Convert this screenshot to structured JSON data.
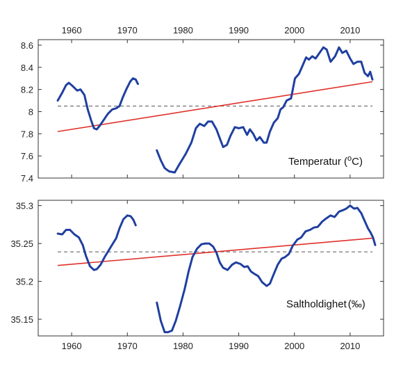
{
  "colors": {
    "series": "#1f3fa0",
    "trend": "#e0302a",
    "mean": "#555555",
    "axis": "#333333"
  },
  "chart_data": [
    {
      "type": "line",
      "label_text": "Temperatur (",
      "label_sup": "o",
      "label_unit": "C)",
      "xlim": [
        1954,
        2016
      ],
      "ylim": [
        7.4,
        8.65
      ],
      "xticks": [
        "1960",
        "1970",
        "1980",
        "1990",
        "2000",
        "2010"
      ],
      "yticks": [
        "7.4",
        "7.6",
        "7.8",
        "8",
        "8.2",
        "8.4",
        "8.6"
      ],
      "xaxis_position": "top",
      "grid": false,
      "mean": 8.05,
      "trend": [
        [
          1957.5,
          7.82
        ],
        [
          2014.0,
          8.27
        ]
      ],
      "series": [
        {
          "values": [
            [
              1957.5,
              8.1
            ],
            [
              1958.3,
              8.17
            ],
            [
              1959.0,
              8.24
            ],
            [
              1959.5,
              8.26
            ],
            [
              1960.2,
              8.23
            ],
            [
              1961.0,
              8.19
            ],
            [
              1961.6,
              8.2
            ],
            [
              1962.3,
              8.15
            ],
            [
              1962.9,
              8.02
            ],
            [
              1963.5,
              7.92
            ],
            [
              1964.0,
              7.85
            ],
            [
              1964.5,
              7.84
            ],
            [
              1965.0,
              7.87
            ],
            [
              1965.7,
              7.92
            ],
            [
              1966.5,
              7.98
            ],
            [
              1967.3,
              8.02
            ],
            [
              1968.0,
              8.03
            ],
            [
              1968.6,
              8.05
            ],
            [
              1969.2,
              8.13
            ],
            [
              1969.8,
              8.2
            ],
            [
              1970.5,
              8.27
            ],
            [
              1971.0,
              8.3
            ],
            [
              1971.5,
              8.29
            ],
            [
              1971.9,
              8.25
            ]
          ]
        },
        {
          "values": [
            [
              1975.3,
              7.65
            ],
            [
              1976.0,
              7.56
            ],
            [
              1976.7,
              7.49
            ],
            [
              1977.5,
              7.46
            ],
            [
              1978.5,
              7.45
            ],
            [
              1979.3,
              7.52
            ],
            [
              1980.5,
              7.62
            ],
            [
              1981.5,
              7.72
            ],
            [
              1982.3,
              7.85
            ],
            [
              1983.0,
              7.89
            ],
            [
              1983.8,
              7.87
            ],
            [
              1984.5,
              7.91
            ],
            [
              1985.2,
              7.91
            ],
            [
              1986.0,
              7.84
            ],
            [
              1986.6,
              7.76
            ],
            [
              1987.2,
              7.68
            ],
            [
              1987.9,
              7.7
            ],
            [
              1988.5,
              7.78
            ],
            [
              1989.3,
              7.86
            ],
            [
              1990.0,
              7.85
            ],
            [
              1990.8,
              7.86
            ],
            [
              1991.5,
              7.79
            ],
            [
              1992.0,
              7.84
            ],
            [
              1992.6,
              7.8
            ],
            [
              1993.2,
              7.74
            ],
            [
              1993.8,
              7.77
            ],
            [
              1994.5,
              7.72
            ],
            [
              1995.0,
              7.72
            ],
            [
              1995.6,
              7.82
            ],
            [
              1996.3,
              7.9
            ],
            [
              1997.0,
              7.94
            ],
            [
              1997.5,
              8.02
            ],
            [
              1998.0,
              8.04
            ],
            [
              1998.6,
              8.1
            ],
            [
              1999.4,
              8.12
            ],
            [
              2000.1,
              8.3
            ],
            [
              2000.8,
              8.34
            ],
            [
              2001.5,
              8.42
            ],
            [
              2002.1,
              8.49
            ],
            [
              2002.6,
              8.47
            ],
            [
              2003.2,
              8.5
            ],
            [
              2003.8,
              8.48
            ],
            [
              2004.5,
              8.53
            ],
            [
              2005.2,
              8.58
            ],
            [
              2005.8,
              8.56
            ],
            [
              2006.5,
              8.45
            ],
            [
              2007.3,
              8.5
            ],
            [
              2008.0,
              8.58
            ],
            [
              2008.6,
              8.53
            ],
            [
              2009.3,
              8.55
            ],
            [
              2010.0,
              8.48
            ],
            [
              2010.6,
              8.43
            ],
            [
              2011.3,
              8.45
            ],
            [
              2012.0,
              8.45
            ],
            [
              2012.6,
              8.35
            ],
            [
              2013.2,
              8.32
            ],
            [
              2013.6,
              8.36
            ],
            [
              2014.0,
              8.29
            ]
          ]
        }
      ]
    },
    {
      "type": "line",
      "label_text": "Saltholdighet",
      "label_sup": "",
      "label_unit": "(‰)",
      "xlim": [
        1954,
        2016
      ],
      "ylim": [
        35.128,
        35.307
      ],
      "xticks": [
        "1960",
        "1970",
        "1980",
        "1990",
        "2000",
        "2010"
      ],
      "yticks": [
        "35.15",
        "35.2",
        "35.25",
        "35.3"
      ],
      "xaxis_position": "bottom",
      "grid": false,
      "mean": 35.239,
      "trend": [
        [
          1957.5,
          35.221
        ],
        [
          2014.0,
          35.257
        ]
      ],
      "series": [
        {
          "values": [
            [
              1957.5,
              35.263
            ],
            [
              1958.3,
              35.262
            ],
            [
              1959.0,
              35.268
            ],
            [
              1959.7,
              35.268
            ],
            [
              1960.5,
              35.262
            ],
            [
              1961.3,
              35.258
            ],
            [
              1962.0,
              35.248
            ],
            [
              1962.6,
              35.233
            ],
            [
              1963.3,
              35.22
            ],
            [
              1964.0,
              35.215
            ],
            [
              1964.5,
              35.216
            ],
            [
              1965.2,
              35.222
            ],
            [
              1966.0,
              35.233
            ],
            [
              1967.0,
              35.245
            ],
            [
              1968.0,
              35.257
            ],
            [
              1968.6,
              35.27
            ],
            [
              1969.3,
              35.282
            ],
            [
              1970.0,
              35.287
            ],
            [
              1970.6,
              35.286
            ],
            [
              1971.1,
              35.281
            ],
            [
              1971.5,
              35.274
            ]
          ]
        },
        {
          "values": [
            [
              1975.3,
              35.172
            ],
            [
              1976.0,
              35.148
            ],
            [
              1976.7,
              35.133
            ],
            [
              1977.3,
              35.133
            ],
            [
              1978.0,
              35.135
            ],
            [
              1978.7,
              35.148
            ],
            [
              1979.5,
              35.168
            ],
            [
              1980.3,
              35.19
            ],
            [
              1981.0,
              35.213
            ],
            [
              1981.7,
              35.232
            ],
            [
              1982.5,
              35.243
            ],
            [
              1983.3,
              35.249
            ],
            [
              1984.0,
              35.25
            ],
            [
              1984.7,
              35.25
            ],
            [
              1985.4,
              35.246
            ],
            [
              1986.0,
              35.238
            ],
            [
              1986.6,
              35.225
            ],
            [
              1987.2,
              35.218
            ],
            [
              1988.0,
              35.215
            ],
            [
              1988.8,
              35.222
            ],
            [
              1989.5,
              35.225
            ],
            [
              1990.3,
              35.223
            ],
            [
              1991.0,
              35.219
            ],
            [
              1991.6,
              35.22
            ],
            [
              1992.2,
              35.213
            ],
            [
              1992.8,
              35.21
            ],
            [
              1993.5,
              35.207
            ],
            [
              1994.2,
              35.199
            ],
            [
              1995.0,
              35.194
            ],
            [
              1995.6,
              35.197
            ],
            [
              1996.2,
              35.208
            ],
            [
              1997.0,
              35.222
            ],
            [
              1997.7,
              35.23
            ],
            [
              1998.3,
              35.232
            ],
            [
              1999.0,
              35.236
            ],
            [
              1999.7,
              35.247
            ],
            [
              2000.5,
              35.255
            ],
            [
              2001.2,
              35.258
            ],
            [
              2002.0,
              35.266
            ],
            [
              2002.8,
              35.268
            ],
            [
              2003.5,
              35.271
            ],
            [
              2004.2,
              35.272
            ],
            [
              2005.0,
              35.279
            ],
            [
              2005.7,
              35.283
            ],
            [
              2006.5,
              35.287
            ],
            [
              2007.2,
              35.285
            ],
            [
              2008.0,
              35.292
            ],
            [
              2008.7,
              35.294
            ],
            [
              2009.3,
              35.296
            ],
            [
              2010.0,
              35.3
            ],
            [
              2010.7,
              35.296
            ],
            [
              2011.3,
              35.297
            ],
            [
              2012.0,
              35.29
            ],
            [
              2012.6,
              35.28
            ],
            [
              2013.2,
              35.27
            ],
            [
              2013.7,
              35.264
            ],
            [
              2014.1,
              35.258
            ],
            [
              2014.5,
              35.248
            ]
          ]
        }
      ]
    }
  ]
}
